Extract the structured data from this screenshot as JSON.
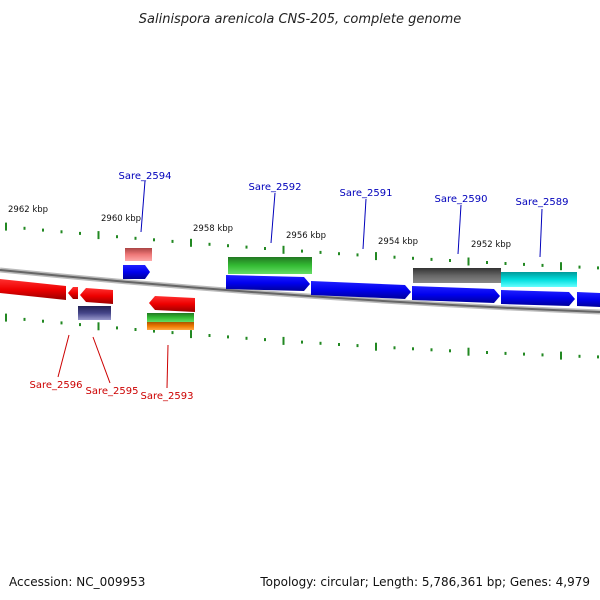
{
  "title": "Salinispora arenicola CNS-205, complete genome",
  "accession": "Accession: NC_009953",
  "summary": "Topology: circular; Length: 5,786,361 bp; Genes: 4,979",
  "kbp_labels": [
    "2962 kbp",
    "2960 kbp",
    "2958 kbp",
    "2956 kbp",
    "2954 kbp",
    "2952 kbp"
  ],
  "genes_top": [
    {
      "label": "Sare_2594",
      "color": "#0000bb"
    },
    {
      "label": "Sare_2592",
      "color": "#0000bb"
    },
    {
      "label": "Sare_2591",
      "color": "#0000bb"
    },
    {
      "label": "Sare_2590",
      "color": "#0000bb"
    },
    {
      "label": "Sare_2589",
      "color": "#0000bb"
    }
  ],
  "genes_bottom": [
    {
      "label": "Sare_2596",
      "color": "#cc0000"
    },
    {
      "label": "Sare_2595",
      "color": "#cc0000"
    },
    {
      "label": "Sare_2593",
      "color": "#cc0000"
    }
  ],
  "colors": {
    "forward_strand": "#0000ee",
    "reverse_strand": "#ee0000",
    "backbone": "#888888",
    "ticks": "#228822",
    "feature_green": "#33bb33",
    "feature_grey": "#555555",
    "feature_cyan": "#00dddd",
    "feature_pink": "#ee7777",
    "feature_purple": "#444488",
    "feature_orange": "#ee7700"
  }
}
